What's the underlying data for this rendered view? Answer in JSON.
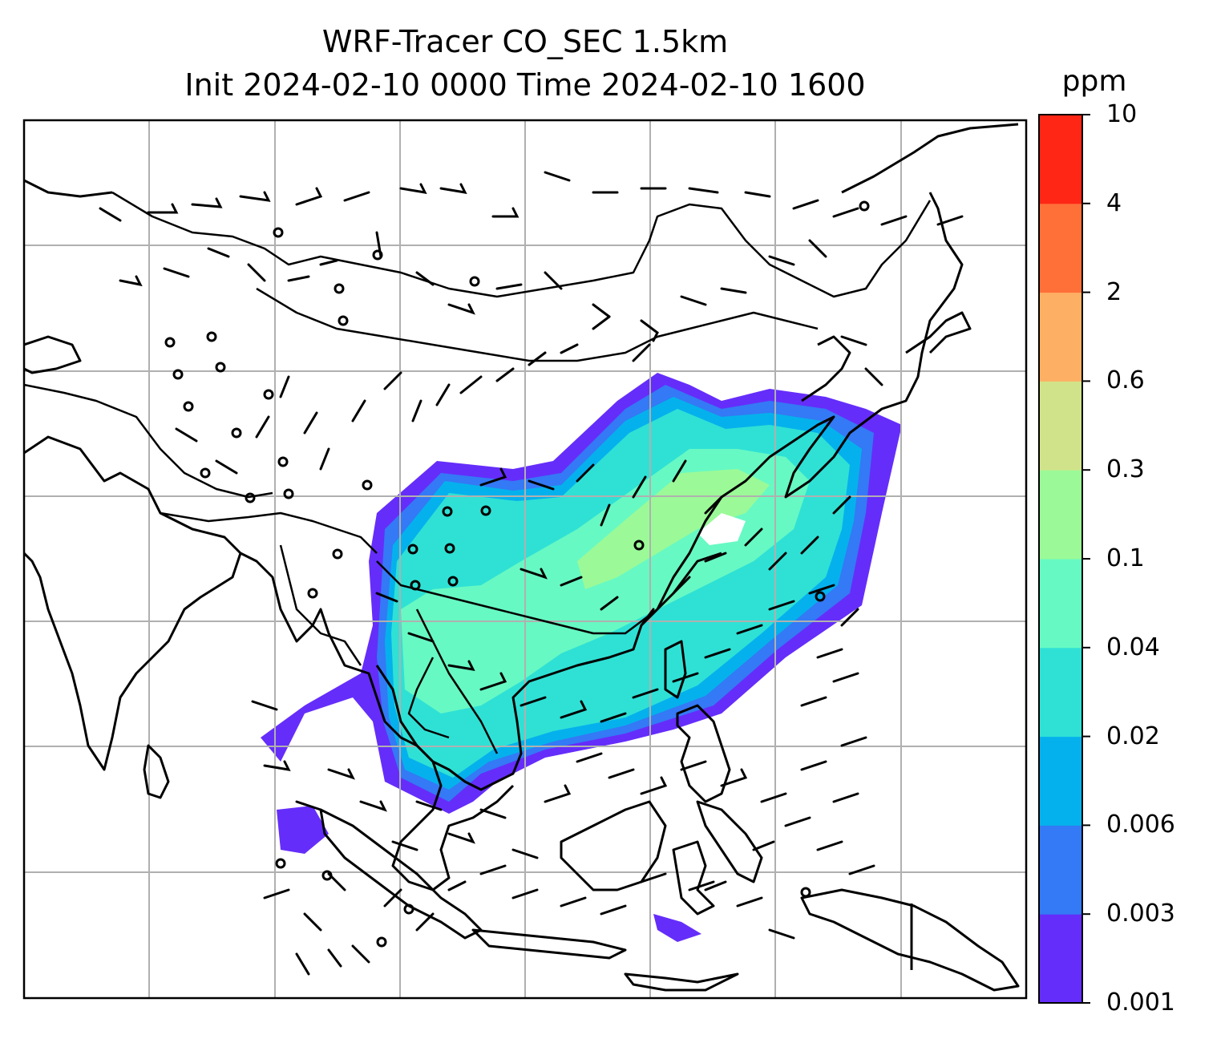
{
  "map": {
    "title_line1": "WRF-Tracer CO_SEC 1.5km",
    "title_line2": "Init 2024-02-10 0000 Time 2024-02-10 1600",
    "variable": "CO_SEC",
    "level": "1.5km",
    "init_time": "2024-02-10 0000",
    "valid_time": "2024-02-10 1600",
    "gridlines": true,
    "features": [
      "coastlines",
      "country-borders",
      "wind-barbs",
      "tracer-concentration-fill"
    ]
  },
  "colorbar": {
    "title": "ppm",
    "tick_labels": [
      "0.001",
      "0.003",
      "0.006",
      "0.02",
      "0.04",
      "0.1",
      "0.3",
      "0.6",
      "2",
      "4",
      "10"
    ],
    "colors": [
      "#652dfa",
      "#3479f5",
      "#05b1ec",
      "#2fe1d5",
      "#67f9c3",
      "#9bfa97",
      "#d1e38a",
      "#fdb064",
      "#ff7039",
      "#ff2616"
    ]
  }
}
